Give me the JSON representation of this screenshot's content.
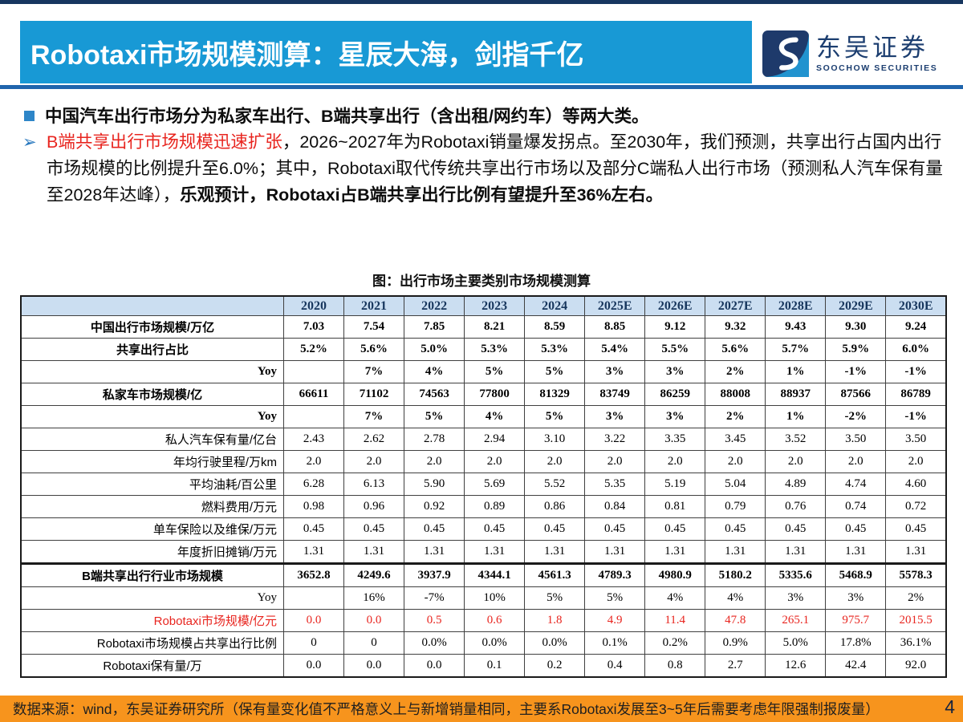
{
  "header": {
    "title": "Robotaxi市场规模测算：星辰大海，剑指千亿"
  },
  "logo": {
    "name_cn": "东吴证券",
    "name_en": "SOOCHOW SECURITIES"
  },
  "bullets": {
    "b1": "中国汽车出行市场分为私家车出行、B端共享出行（含出租/网约车）等两大类。",
    "b2_red": "B端共享出行市场规模迅速扩张",
    "b2_mid": "，2026~2027年为Robotaxi销量爆发拐点。至2030年，我们预测，共享出行占国内出行市场规模的比例提升至6.0%；其中，Robotaxi取代传统共享出行市场以及部分C端私人出行市场（预测私人汽车保有量至2028年达峰），",
    "b2_bold": "乐观预计，Robotaxi占B端共享出行比例有望提升至36%左右。"
  },
  "table_title": "图：出行市场主要类别市场规模测算",
  "chart_data": {
    "type": "table",
    "title": "图：出行市场主要类别市场规模测算",
    "columns": [
      "2020",
      "2021",
      "2022",
      "2023",
      "2024",
      "2025E",
      "2026E",
      "2027E",
      "2028E",
      "2029E",
      "2030E"
    ],
    "rows": [
      {
        "label": "中国出行市场规模/万亿",
        "label_align": "center",
        "label_bold": true,
        "value_bold": true,
        "values": [
          "7.03",
          "7.54",
          "7.85",
          "8.21",
          "8.59",
          "8.85",
          "9.12",
          "9.32",
          "9.43",
          "9.30",
          "9.24"
        ]
      },
      {
        "label": "共享出行占比",
        "label_align": "center",
        "label_bold": true,
        "value_bold": true,
        "values": [
          "5.2%",
          "5.6%",
          "5.0%",
          "5.3%",
          "5.3%",
          "5.4%",
          "5.5%",
          "5.6%",
          "5.7%",
          "5.9%",
          "6.0%"
        ]
      },
      {
        "label": "Yoy",
        "label_align": "right",
        "label_bold": true,
        "label_serif": true,
        "value_bold": true,
        "values": [
          "",
          "7%",
          "4%",
          "5%",
          "5%",
          "3%",
          "3%",
          "2%",
          "1%",
          "-1%",
          "-1%"
        ]
      },
      {
        "label": "私家车市场规模/亿",
        "label_align": "center",
        "label_bold": true,
        "value_bold": true,
        "values": [
          "66611",
          "71102",
          "74563",
          "77800",
          "81329",
          "83749",
          "86259",
          "88008",
          "88937",
          "87566",
          "86789"
        ]
      },
      {
        "label": "Yoy",
        "label_align": "right",
        "label_bold": true,
        "label_serif": true,
        "value_bold": true,
        "values": [
          "",
          "7%",
          "5%",
          "4%",
          "5%",
          "3%",
          "3%",
          "2%",
          "1%",
          "-2%",
          "-1%"
        ]
      },
      {
        "label": "私人汽车保有量/亿台",
        "label_align": "right",
        "values": [
          "2.43",
          "2.62",
          "2.78",
          "2.94",
          "3.10",
          "3.22",
          "3.35",
          "3.45",
          "3.52",
          "3.50",
          "3.50"
        ]
      },
      {
        "label": "年均行驶里程/万km",
        "label_align": "right",
        "values": [
          "2.0",
          "2.0",
          "2.0",
          "2.0",
          "2.0",
          "2.0",
          "2.0",
          "2.0",
          "2.0",
          "2.0",
          "2.0"
        ]
      },
      {
        "label": "平均油耗/百公里",
        "label_align": "right",
        "values": [
          "6.28",
          "6.13",
          "5.90",
          "5.69",
          "5.52",
          "5.35",
          "5.19",
          "5.04",
          "4.89",
          "4.74",
          "4.60"
        ]
      },
      {
        "label": "燃料费用/万元",
        "label_align": "right",
        "values": [
          "0.98",
          "0.96",
          "0.92",
          "0.89",
          "0.86",
          "0.84",
          "0.81",
          "0.79",
          "0.76",
          "0.74",
          "0.72"
        ]
      },
      {
        "label": "单车保险以及维保/万元",
        "label_align": "right",
        "values": [
          "0.45",
          "0.45",
          "0.45",
          "0.45",
          "0.45",
          "0.45",
          "0.45",
          "0.45",
          "0.45",
          "0.45",
          "0.45"
        ]
      },
      {
        "label": "年度折旧摊销/万元",
        "label_align": "right",
        "values": [
          "1.31",
          "1.31",
          "1.31",
          "1.31",
          "1.31",
          "1.31",
          "1.31",
          "1.31",
          "1.31",
          "1.31",
          "1.31"
        ]
      },
      {
        "label": "B端共享出行行业市场规模",
        "label_align": "center",
        "label_bold": true,
        "value_bold": true,
        "thick_top": true,
        "values": [
          "3652.8",
          "4249.6",
          "3937.9",
          "4344.1",
          "4561.3",
          "4789.3",
          "4980.9",
          "5180.2",
          "5335.6",
          "5468.9",
          "5578.3"
        ]
      },
      {
        "label": "Yoy",
        "label_align": "right",
        "label_serif": true,
        "values": [
          "",
          "16%",
          "-7%",
          "10%",
          "5%",
          "5%",
          "4%",
          "4%",
          "3%",
          "3%",
          "2%"
        ]
      },
      {
        "label": "Robotaxi市场规模/亿元",
        "label_align": "right",
        "label_red": true,
        "value_red": true,
        "values": [
          "0.0",
          "0.0",
          "0.5",
          "0.6",
          "1.8",
          "4.9",
          "11.4",
          "47.8",
          "265.1",
          "975.7",
          "2015.5"
        ]
      },
      {
        "label": "Robotaxi市场规模占共享出行比例",
        "label_align": "right",
        "values": [
          "0",
          "0",
          "0.0%",
          "0.0%",
          "0.0%",
          "0.1%",
          "0.2%",
          "0.9%",
          "5.0%",
          "17.8%",
          "36.1%"
        ]
      },
      {
        "label": "Robotaxi保有量/万",
        "label_align": "center",
        "values": [
          "0.0",
          "0.0",
          "0.0",
          "0.1",
          "0.2",
          "0.4",
          "0.8",
          "2.7",
          "12.6",
          "42.4",
          "92.0"
        ]
      }
    ]
  },
  "footer": {
    "source": "数据来源：wind，东吴证券研究所（保有量变化值不严格意义上与新增销量相同，主要系Robotaxi发展至3~5年后需要考虑年限强制报废量）",
    "page": "4"
  },
  "colors": {
    "header_blue": "#1899d5",
    "divider_blue": "#2065ad",
    "top_strip_navy": "#17365f",
    "table_header_bg": "#cbdef1",
    "table_header_text": "#17365d",
    "accent_red": "#e8251f",
    "footer_orange": "#f7941d",
    "bullet_blue": "#2e86c8",
    "logo_navy": "#1c3e70"
  }
}
